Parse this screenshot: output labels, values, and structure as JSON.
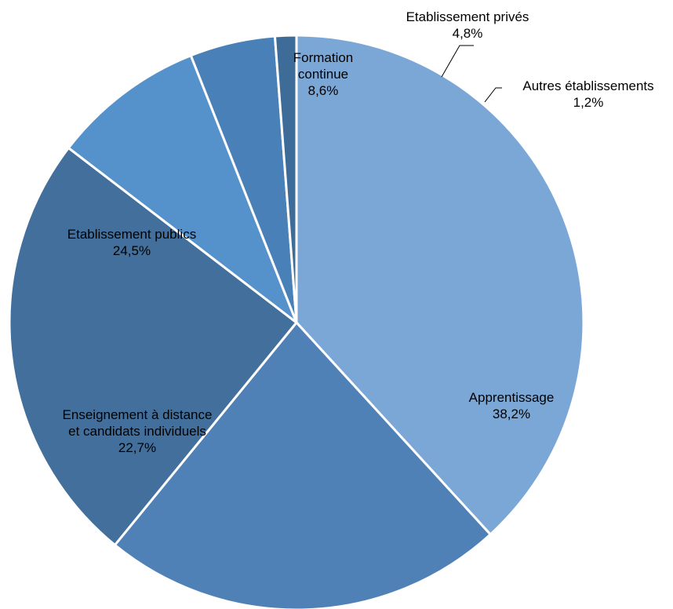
{
  "chart_data": {
    "type": "pie",
    "start_angle_deg": 90,
    "direction": "clockwise",
    "slices": [
      {
        "label_lines": [
          "Apprentissage"
        ],
        "value": 38.2,
        "value_label": "38,2%",
        "color": "#7ba7d7"
      },
      {
        "label_lines": [
          "Enseignement à distance",
          "et candidats individuels"
        ],
        "value": 22.7,
        "value_label": "22,7%",
        "color": "#4f81b7"
      },
      {
        "label_lines": [
          "Etablissement publics"
        ],
        "value": 24.5,
        "value_label": "24,5%",
        "color": "#426f9c"
      },
      {
        "label_lines": [
          "Formation",
          "continue"
        ],
        "value": 8.6,
        "value_label": "8,6%",
        "color": "#5592cb"
      },
      {
        "label_lines": [
          "Etablissement privés"
        ],
        "value": 4.8,
        "value_label": "4,8%",
        "color": "#4a80b8"
      },
      {
        "label_lines": [
          "Autres établissements"
        ],
        "value": 1.2,
        "value_label": "1,2%",
        "color": "#3e6c98"
      }
    ]
  }
}
